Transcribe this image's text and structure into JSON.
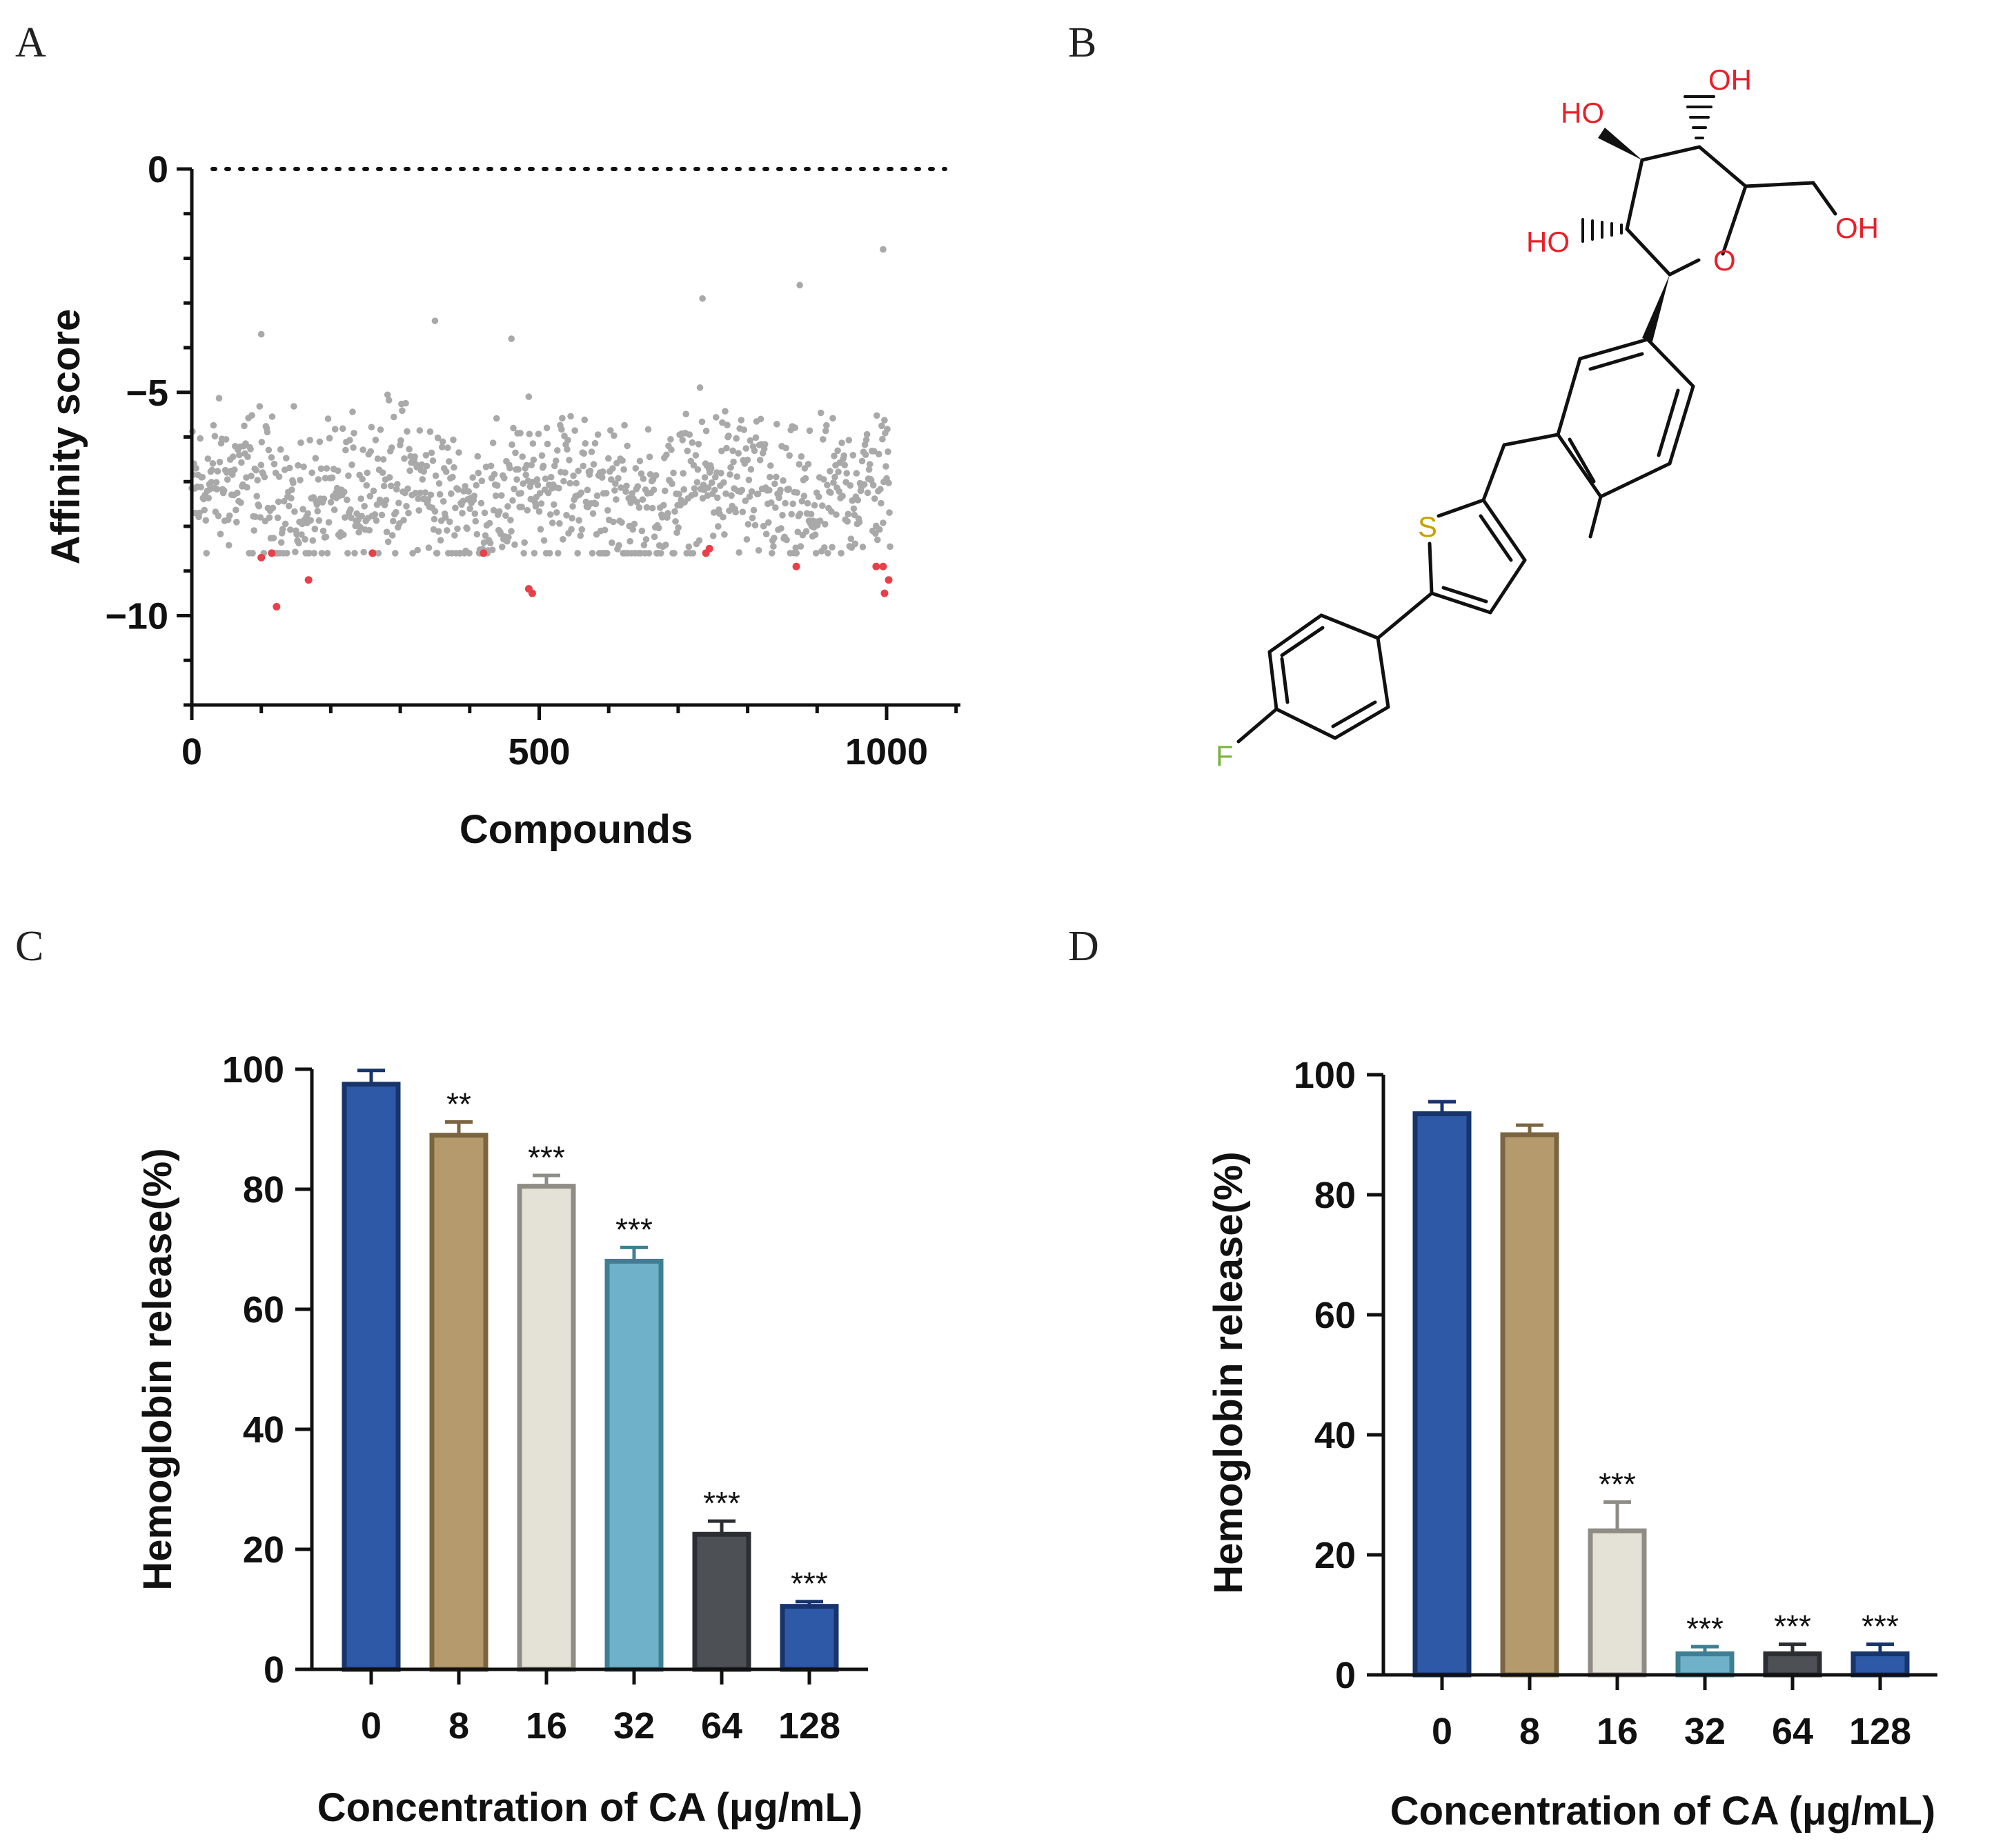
{
  "panels": {
    "A": "A",
    "B": "B",
    "C": "C",
    "D": "D"
  },
  "colors": {
    "scatter_gray": "#a9a9a9",
    "scatter_red": "#e8404a",
    "oxygen_red": "#e8202a",
    "sulfur_yellow": "#c8a000",
    "fluorine_green": "#7cb342",
    "bars": [
      "#2e59a7",
      "#b49a6c",
      "#e4e1d6",
      "#6fb1c8",
      "#4d5156",
      "#2e59a7"
    ],
    "bar_edges": [
      "#17346b",
      "#7a6540",
      "#8f8c85",
      "#3f7f94",
      "#2b2e32",
      "#17346b"
    ]
  },
  "chart_data": [
    {
      "panel": "A",
      "type": "scatter",
      "xlabel": "Compounds",
      "ylabel": "Affinity score",
      "xlim": [
        0,
        1100
      ],
      "ylim": [
        -12,
        0
      ],
      "xticks": [
        0,
        500,
        1000
      ],
      "yticks": [
        0,
        -5,
        -10
      ],
      "reference_line": 0,
      "n_points": 1000,
      "gray_range": [
        -8.6,
        -1.9
      ],
      "highlighted_points": [
        {
          "x": 100,
          "y": -8.7
        },
        {
          "x": 115,
          "y": -8.6
        },
        {
          "x": 122,
          "y": -9.8
        },
        {
          "x": 168,
          "y": -9.2
        },
        {
          "x": 260,
          "y": -8.6
        },
        {
          "x": 420,
          "y": -8.6
        },
        {
          "x": 485,
          "y": -9.4
        },
        {
          "x": 490,
          "y": -9.5
        },
        {
          "x": 740,
          "y": -8.6
        },
        {
          "x": 745,
          "y": -8.5
        },
        {
          "x": 870,
          "y": -8.9
        },
        {
          "x": 985,
          "y": -8.9
        },
        {
          "x": 995,
          "y": -8.9
        },
        {
          "x": 997,
          "y": -9.5
        },
        {
          "x": 1003,
          "y": -9.2
        }
      ],
      "notable_gray_points": [
        {
          "x": 995,
          "y": -1.8
        },
        {
          "x": 875,
          "y": -2.6
        },
        {
          "x": 735,
          "y": -2.9
        },
        {
          "x": 350,
          "y": -3.4
        },
        {
          "x": 460,
          "y": -3.8
        },
        {
          "x": 100,
          "y": -3.7
        }
      ]
    },
    {
      "panel": "C",
      "type": "bar",
      "categories": [
        "0",
        "8",
        "16",
        "32",
        "64",
        "128"
      ],
      "values": [
        97.5,
        89,
        80.5,
        68,
        22.5,
        10.5
      ],
      "errors": [
        2.3,
        2.2,
        1.8,
        2.3,
        2.2,
        0.8
      ],
      "significance": [
        "",
        "**",
        "***",
        "***",
        "***",
        "***"
      ],
      "xlabel": "Concentration of CA (μg/mL)",
      "ylabel": "Hemoglobin release(%)",
      "ylim": [
        0,
        100
      ],
      "yticks": [
        0,
        20,
        40,
        60,
        80,
        100
      ]
    },
    {
      "panel": "D",
      "type": "bar",
      "categories": [
        "0",
        "8",
        "16",
        "32",
        "64",
        "128"
      ],
      "values": [
        93.5,
        90,
        24,
        3.5,
        3.5,
        3.5
      ],
      "errors": [
        2,
        1.6,
        4.8,
        1.2,
        1.6,
        1.6
      ],
      "significance": [
        "",
        "",
        "***",
        "***",
        "***",
        "***"
      ],
      "xlabel": "Concentration of CA (μg/mL)",
      "ylabel": "Hemoglobin release(%)",
      "ylim": [
        0,
        100
      ],
      "yticks": [
        0,
        20,
        40,
        60,
        80,
        100
      ]
    }
  ],
  "structure": {
    "name": "canagliflozin structure",
    "atoms": {
      "ho_top": "HO",
      "oh_top": "OH",
      "ho_left": "HO",
      "oh_right": "OH",
      "ring_o": "O",
      "sulfur": "S",
      "fluorine": "F"
    }
  }
}
